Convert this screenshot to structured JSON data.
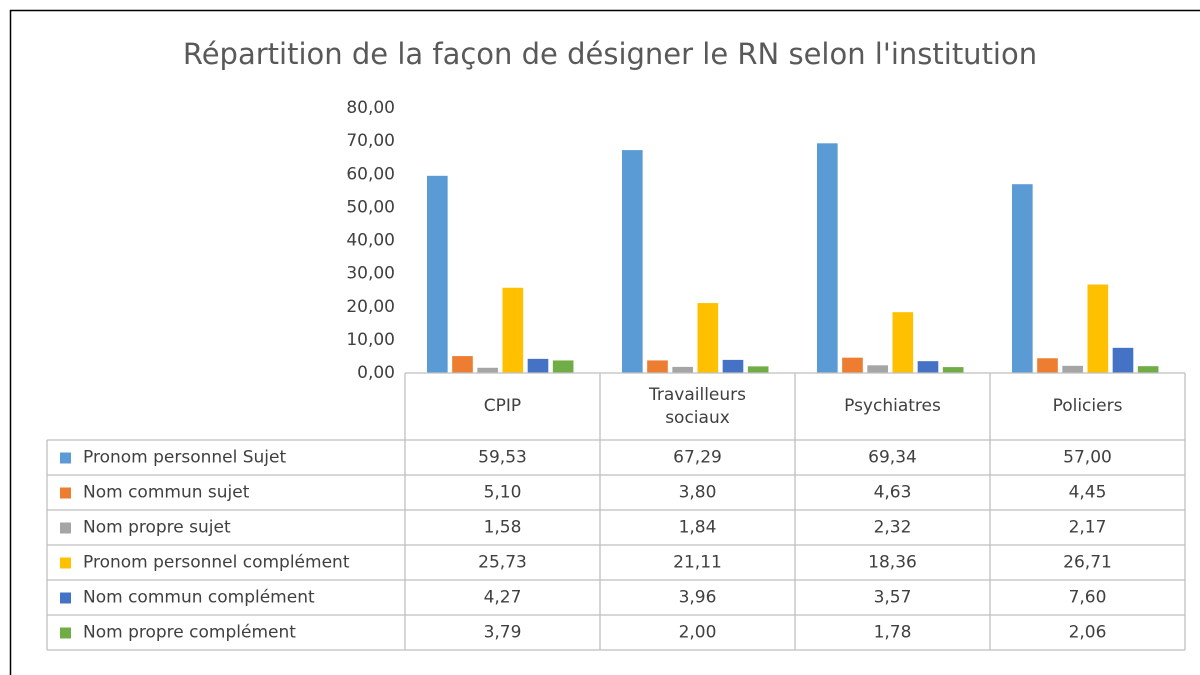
{
  "chart_data": {
    "type": "bar",
    "title": "Répartition de la façon de désigner le RN selon l'institution",
    "categories": [
      "CPIP",
      "Travailleurs sociaux",
      "Psychiatres",
      "Policiers"
    ],
    "series": [
      {
        "name": "Pronom personnel Sujet",
        "color": "#5b9bd5",
        "values": [
          59.53,
          67.29,
          69.34,
          57.0
        ],
        "value_labels": [
          "59,53",
          "67,29",
          "69,34",
          "57,00"
        ]
      },
      {
        "name": "Nom commun sujet",
        "color": "#ed7d31",
        "values": [
          5.1,
          3.8,
          4.63,
          4.45
        ],
        "value_labels": [
          "5,10",
          "3,80",
          "4,63",
          "4,45"
        ]
      },
      {
        "name": "Nom propre sujet",
        "color": "#a5a5a5",
        "values": [
          1.58,
          1.84,
          2.32,
          2.17
        ],
        "value_labels": [
          "1,58",
          "1,84",
          "2,32",
          "2,17"
        ]
      },
      {
        "name": "Pronom personnel complément",
        "color": "#ffc000",
        "values": [
          25.73,
          21.11,
          18.36,
          26.71
        ],
        "value_labels": [
          "25,73",
          "21,11",
          "18,36",
          "26,71"
        ]
      },
      {
        "name": "Nom commun complément",
        "color": "#4472c4",
        "values": [
          4.27,
          3.96,
          3.57,
          7.6
        ],
        "value_labels": [
          "4,27",
          "3,96",
          "3,57",
          "7,60"
        ]
      },
      {
        "name": "Nom propre complément",
        "color": "#70ad47",
        "values": [
          3.79,
          2.0,
          1.78,
          2.06
        ],
        "value_labels": [
          "3,79",
          "2,00",
          "1,78",
          "2,06"
        ]
      }
    ],
    "ylim": [
      0,
      80
    ],
    "yticks": [
      {
        "value": 0,
        "label": "0,00"
      },
      {
        "value": 10,
        "label": "10,00"
      },
      {
        "value": 20,
        "label": "20,00"
      },
      {
        "value": 30,
        "label": "30,00"
      },
      {
        "value": 40,
        "label": "40,00"
      },
      {
        "value": 50,
        "label": "50,00"
      },
      {
        "value": 60,
        "label": "60,00"
      },
      {
        "value": 70,
        "label": "70,00"
      },
      {
        "value": 80,
        "label": "80,00"
      }
    ],
    "legend": "table"
  }
}
